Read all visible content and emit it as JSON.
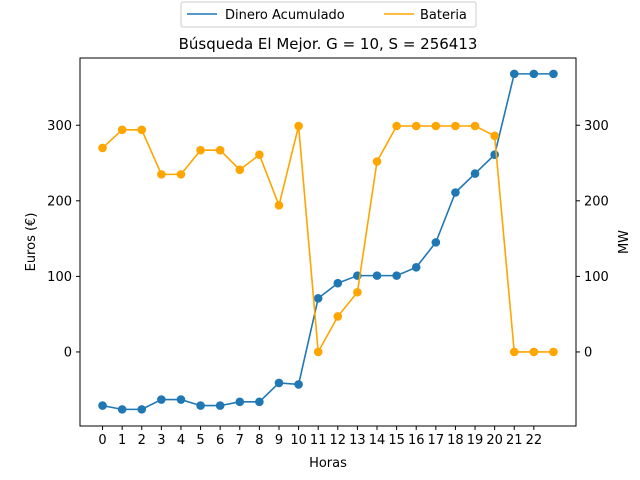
{
  "chart_data": {
    "type": "line",
    "title": "Búsqueda El Mejor. G = 10, S = 256413",
    "xlabel": "Horas",
    "ylabel_left": "Euros (€)",
    "ylabel_right": "MW",
    "x": [
      0,
      1,
      2,
      3,
      4,
      5,
      6,
      7,
      8,
      9,
      10,
      11,
      12,
      13,
      14,
      15,
      16,
      17,
      18,
      19,
      20,
      21,
      22,
      23
    ],
    "x_tick_labels": [
      "0",
      "1",
      "2",
      "3",
      "4",
      "5",
      "6",
      "7",
      "8",
      "9",
      "10",
      "11",
      "12",
      "13",
      "14",
      "15",
      "16",
      "17",
      "18",
      "19",
      "20",
      "21",
      "22"
    ],
    "xlim": [
      -1.15,
      24.15
    ],
    "ylim_left": [
      -98,
      389
    ],
    "ylim_right": [
      -98,
      389
    ],
    "y_ticks_left": [
      0,
      100,
      200,
      300
    ],
    "y_ticks_right": [
      0,
      100,
      200,
      300
    ],
    "legend_location": "top-center",
    "series": [
      {
        "name": "Dinero Acumulado",
        "axis": "left",
        "color": "#1f77b4",
        "values": [
          -71,
          -76,
          -76,
          -63,
          -63,
          -71,
          -71,
          -66,
          -66,
          -41,
          -43,
          71,
          91,
          101,
          101,
          101,
          112,
          145,
          211,
          236,
          261,
          368,
          368,
          368
        ]
      },
      {
        "name": "Bateria",
        "axis": "right",
        "color": "#ffa500",
        "values": [
          270,
          294,
          294,
          235,
          235,
          267,
          267,
          241,
          261,
          194,
          299,
          0,
          47,
          79,
          252,
          299,
          299,
          299,
          299,
          299,
          286,
          0,
          0,
          0
        ]
      }
    ]
  }
}
